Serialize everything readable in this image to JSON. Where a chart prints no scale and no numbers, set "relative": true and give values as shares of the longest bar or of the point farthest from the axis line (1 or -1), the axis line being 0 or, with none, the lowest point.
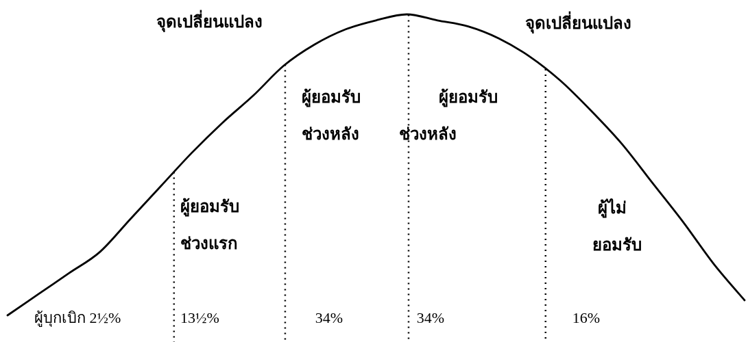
{
  "chart_data": {
    "type": "line",
    "relative": true,
    "categories": [
      null,
      null,
      null,
      null,
      null,
      null,
      null,
      null,
      null,
      null,
      null,
      null,
      null,
      null,
      null,
      null,
      null,
      null,
      null,
      null,
      null,
      null,
      null,
      null,
      null
    ],
    "series": [
      {
        "color": "#000000",
        "values": [
          0,
          0.07,
          0.14,
          0.21,
          0.32,
          0.43,
          0.54,
          0.64,
          0.73,
          0.83,
          0.9,
          0.95,
          0.98,
          1,
          0.98,
          0.96,
          0.92,
          0.86,
          0.78,
          0.68,
          0.57,
          0.44,
          0.31,
          0.17,
          0.05
        ]
      }
    ],
    "line_style": "solid",
    "annotations": [
      "จุดเปลี่ยนแปลง",
      "จุดเปลี่ยนแปลง",
      "ผู้ยอมรับ\nช่วงแรก",
      "ผู้ยอมรับ\nช่วงหลัง",
      "ผู้ยอมรับ\nช่วงหลัง",
      "ผู้ไม่\nยอมรับ",
      "ผู้บุกเบิก 2½%",
      "13½%",
      "34%",
      "34%",
      "16%"
    ]
  }
}
